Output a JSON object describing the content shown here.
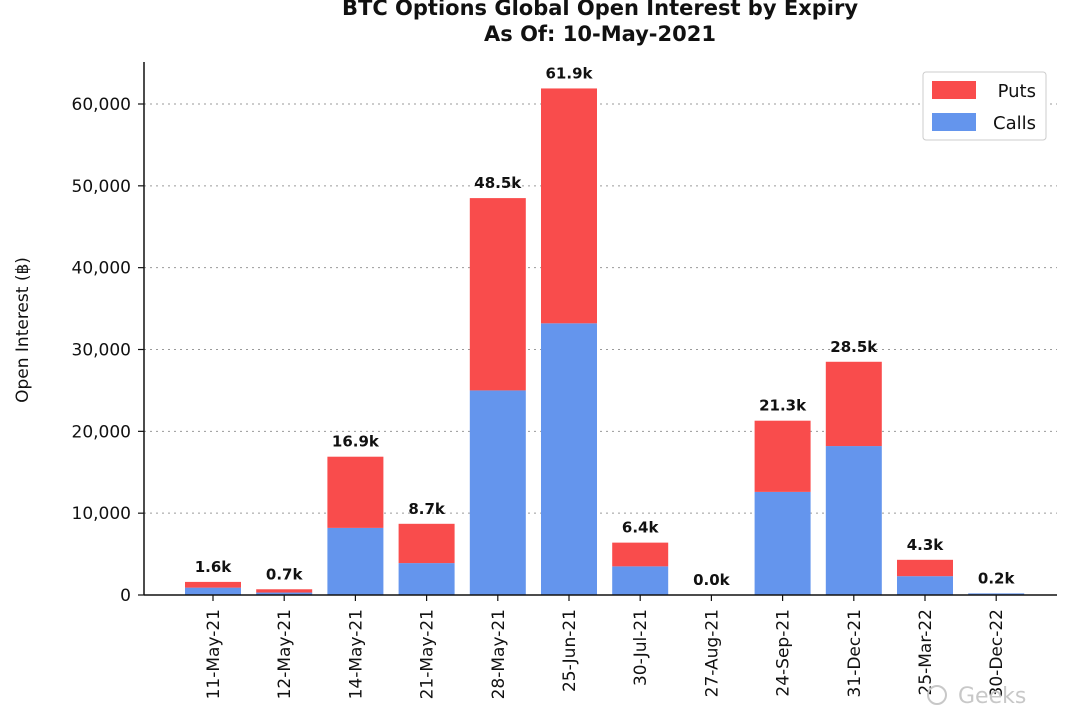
{
  "chart_data": {
    "type": "bar",
    "stacked": true,
    "title": "BTC Options Global Open Interest by Expiry",
    "subtitle": "As Of: 10-May-2021",
    "xlabel": "",
    "ylabel": "Open Interest (฿)",
    "ylim": [
      0,
      65000
    ],
    "yticks": [
      0,
      10000,
      20000,
      30000,
      40000,
      50000,
      60000
    ],
    "ytick_labels": [
      "0",
      "10,000",
      "20,000",
      "30,000",
      "40,000",
      "50,000",
      "60,000"
    ],
    "grid": true,
    "legend_position": "top-right",
    "categories": [
      "11-May-21",
      "12-May-21",
      "14-May-21",
      "21-May-21",
      "28-May-21",
      "25-Jun-21",
      "30-Jul-21",
      "27-Aug-21",
      "24-Sep-21",
      "31-Dec-21",
      "25-Mar-22",
      "30-Dec-22"
    ],
    "category_labels_shown": [
      "11-May-21",
      "12-May-21",
      "14-May-21",
      "21-May-21",
      "28-May-21",
      "25-Jun-21",
      "30-Jul-21",
      "27-Aug-21",
      "24-Sep-21",
      "31-Dec-21",
      "25-Mar-22",
      "30-Dec-22"
    ],
    "series": [
      {
        "name": "Calls",
        "color": "#6495ed",
        "values": [
          900,
          300,
          8200,
          3900,
          25000,
          33200,
          3500,
          0,
          12600,
          18200,
          2300,
          200
        ]
      },
      {
        "name": "Puts",
        "color": "#f94c4c",
        "values": [
          700,
          400,
          8700,
          4800,
          23500,
          28700,
          2900,
          0,
          8700,
          10300,
          2000,
          0
        ]
      }
    ],
    "totals_labels": [
      "1.6k",
      "0.7k",
      "16.9k",
      "8.7k",
      "48.5k",
      "61.9k",
      "6.4k",
      "0.0k",
      "21.3k",
      "28.5k",
      "4.3k",
      "0.2k"
    ],
    "legend": [
      "Puts",
      "Calls"
    ]
  },
  "watermark": "Geeks"
}
